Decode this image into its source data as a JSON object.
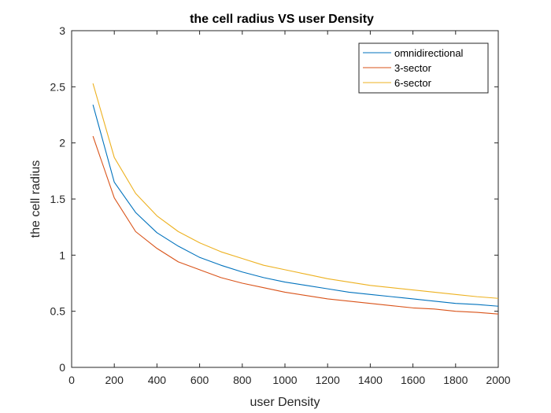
{
  "chart_data": {
    "type": "line",
    "title": "the cell radius  VS user Density",
    "xlabel": "user Density",
    "ylabel": "the cell radius",
    "xlim": [
      0,
      2000
    ],
    "ylim": [
      0,
      3
    ],
    "xticks": [
      "0",
      "200",
      "400",
      "600",
      "800",
      "1000",
      "1200",
      "1400",
      "1600",
      "1800",
      "2000"
    ],
    "yticks": [
      "0",
      "0.5",
      "1",
      "1.5",
      "2",
      "2.5",
      "3"
    ],
    "grid": false,
    "legend_position": "top-right",
    "x": [
      100,
      200,
      300,
      400,
      500,
      600,
      700,
      800,
      900,
      1000,
      1100,
      1200,
      1300,
      1400,
      1500,
      1600,
      1700,
      1800,
      1900,
      2000
    ],
    "series": [
      {
        "name": "omnidirectional",
        "color": "#0072BD",
        "values": [
          2.34,
          1.65,
          1.38,
          1.2,
          1.08,
          0.98,
          0.91,
          0.85,
          0.8,
          0.76,
          0.73,
          0.7,
          0.67,
          0.65,
          0.63,
          0.61,
          0.59,
          0.57,
          0.56,
          0.545
        ]
      },
      {
        "name": "3-sector",
        "color": "#D95319",
        "values": [
          2.06,
          1.51,
          1.21,
          1.06,
          0.94,
          0.87,
          0.8,
          0.75,
          0.71,
          0.67,
          0.64,
          0.61,
          0.59,
          0.57,
          0.55,
          0.53,
          0.52,
          0.5,
          0.49,
          0.475
        ]
      },
      {
        "name": "6-sector",
        "color": "#EDB120",
        "values": [
          2.53,
          1.87,
          1.55,
          1.35,
          1.21,
          1.11,
          1.03,
          0.97,
          0.91,
          0.87,
          0.83,
          0.79,
          0.76,
          0.73,
          0.71,
          0.69,
          0.67,
          0.65,
          0.63,
          0.615
        ]
      }
    ]
  }
}
